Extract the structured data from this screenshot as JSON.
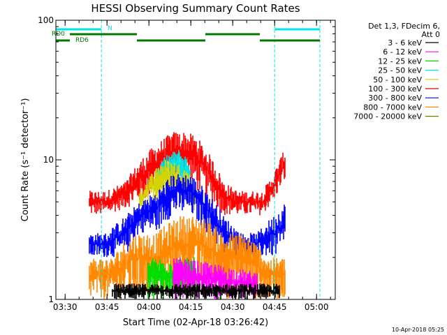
{
  "chart_data": {
    "type": "line",
    "title": "HESSI Observing Summary Count Rates",
    "xlabel": "Start Time (02-Apr-18 03:26:42)",
    "ylabel": "Count Rate (s⁻¹ detector⁻¹)",
    "yscale": "log",
    "ylim": [
      1,
      100
    ],
    "xlim_minutes": [
      0,
      100
    ],
    "x_ticks": [
      {
        "label": "03:30",
        "t": 3.3
      },
      {
        "label": "03:45",
        "t": 18.3
      },
      {
        "label": "04:00",
        "t": 33.3
      },
      {
        "label": "04:15",
        "t": 48.3
      },
      {
        "label": "04:30",
        "t": 63.3
      },
      {
        "label": "04:45",
        "t": 78.3
      },
      {
        "label": "05:00",
        "t": 93.3
      }
    ],
    "y_ticks": [
      {
        "label": "1",
        "v": 1
      },
      {
        "label": "10",
        "v": 10
      },
      {
        "label": "100",
        "v": 100
      }
    ],
    "legend": {
      "header": [
        "Det 1,3, FDecim 6,",
        "Att 0"
      ],
      "placement": "right",
      "entries": [
        {
          "label": "3 - 6 keV",
          "color": "#000000"
        },
        {
          "label": "6 - 12 keV",
          "color": "#ff00ff"
        },
        {
          "label": "12 - 25 keV",
          "color": "#00dd00"
        },
        {
          "label": "25 - 50 keV",
          "color": "#00e5e5"
        },
        {
          "label": "50 - 100 keV",
          "color": "#d4d400"
        },
        {
          "label": "100 - 300 keV",
          "color": "#dd0000"
        },
        {
          "label": "300 - 800 keV",
          "color": "#0000ff"
        },
        {
          "label": "800 - 7000 keV",
          "color": "#ff8800"
        },
        {
          "label": "7000 - 20000 keV",
          "color": "#7a7a00"
        }
      ]
    },
    "flags": [
      {
        "name": "N",
        "color": "#00e5e5",
        "segments": [
          [
            0,
            16.3
          ],
          [
            78.3,
            94.5
          ]
        ]
      },
      {
        "name": "RD0",
        "color": "#007700",
        "segments": [
          [
            5,
            29
          ],
          [
            53.5,
            73
          ]
        ]
      },
      {
        "name": "RD6",
        "color": "#007700",
        "segments": [
          [
            0,
            5
          ],
          [
            29,
            53.5
          ],
          [
            73,
            94.5
          ]
        ]
      }
    ],
    "vertical_markers": {
      "color": "#00e5e5",
      "t": [
        0,
        16.3,
        78.3,
        94.5
      ]
    },
    "series": [
      {
        "name": "100 - 300 keV",
        "color": "#ff0000",
        "t": [
          12,
          18,
          25,
          32,
          38,
          42,
          46,
          50,
          55,
          60,
          65,
          70,
          74,
          78,
          80,
          82
        ],
        "min": [
          4,
          4,
          4.5,
          5,
          6.5,
          7,
          7,
          6,
          5,
          4,
          4,
          4,
          4,
          5,
          6,
          7
        ],
        "max": [
          6,
          6,
          7,
          11,
          14,
          16,
          16,
          15,
          11,
          7,
          6,
          6,
          6,
          8,
          10,
          12
        ]
      },
      {
        "name": "25 - 50 keV",
        "color": "#00e5e5",
        "t": [
          36,
          40,
          44,
          48
        ],
        "min": [
          6,
          7,
          7,
          6
        ],
        "max": [
          9,
          11,
          12,
          10
        ]
      },
      {
        "name": "50 - 100 keV",
        "color": "#d4d400",
        "t": [
          30,
          34,
          38,
          42,
          46,
          50
        ],
        "min": [
          4,
          5,
          5,
          5,
          5,
          4
        ],
        "max": [
          6,
          8,
          10,
          10,
          9,
          7
        ]
      },
      {
        "name": "300 - 800 keV",
        "color": "#0000ff",
        "t": [
          12,
          18,
          25,
          30,
          36,
          42,
          48,
          54,
          60,
          66,
          72,
          78,
          82
        ],
        "min": [
          2,
          2,
          2,
          3,
          3,
          4,
          4,
          3,
          2,
          2,
          2,
          2,
          2
        ],
        "max": [
          3,
          3,
          4,
          5,
          6,
          8,
          8,
          6,
          4,
          3,
          3,
          4,
          5
        ]
      },
      {
        "name": "800 - 7000 keV",
        "color": "#ff8800",
        "t": [
          12,
          20,
          28,
          36,
          44,
          52,
          60,
          68,
          76,
          82
        ],
        "min": [
          1,
          1,
          1,
          1,
          1,
          1,
          1,
          1,
          1,
          1
        ],
        "max": [
          2,
          2,
          3,
          3,
          4,
          4,
          3,
          3,
          2,
          2
        ]
      },
      {
        "name": "12 - 25 keV",
        "color": "#00dd00",
        "t": [
          33,
          38,
          44,
          50
        ],
        "min": [
          1,
          1,
          1,
          1
        ],
        "max": [
          2,
          2,
          2,
          2
        ]
      },
      {
        "name": "6 - 12 keV",
        "color": "#ff00ff",
        "t": [
          42,
          44,
          70,
          72
        ],
        "min": [
          1,
          1,
          1,
          1
        ],
        "max": [
          2,
          2,
          1.6,
          1.6
        ]
      },
      {
        "name": "3 - 6 keV",
        "color": "#000000",
        "t": [
          20,
          45,
          80
        ],
        "min": [
          1,
          1,
          1
        ],
        "max": [
          1.3,
          1.3,
          1.3
        ]
      }
    ]
  },
  "footer_timestamp": "10-Apr-2018 05:25"
}
